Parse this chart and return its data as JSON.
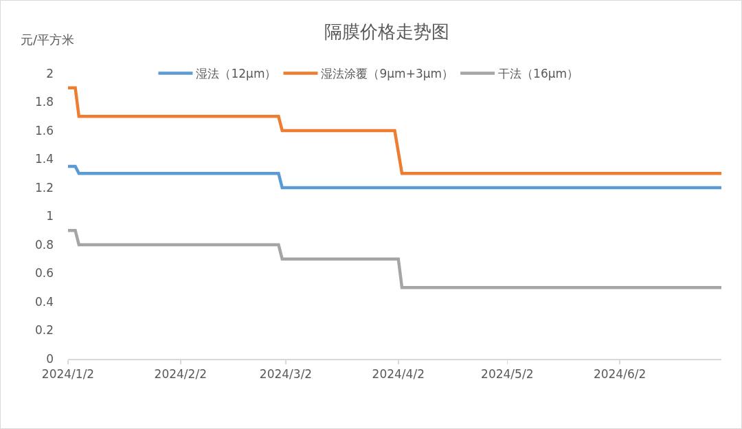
{
  "chart_data": {
    "type": "line",
    "title": "隔膜价格走势图",
    "ylabel": "元/平方米",
    "series": [
      {
        "name": "湿法（12μm）",
        "color": "#5b9bd5",
        "x": [
          "2024-01-02",
          "2024-01-04",
          "2024-01-05",
          "2024-02-29",
          "2024-03-01",
          "2024-06-30"
        ],
        "values": [
          1.35,
          1.35,
          1.3,
          1.3,
          1.2,
          1.2
        ]
      },
      {
        "name": "湿法涂覆（9μm+3μm）",
        "color": "#ed7d31",
        "x": [
          "2024-01-02",
          "2024-01-04",
          "2024-01-05",
          "2024-02-29",
          "2024-03-01",
          "2024-04-01",
          "2024-04-03",
          "2024-06-30"
        ],
        "values": [
          1.9,
          1.9,
          1.7,
          1.7,
          1.6,
          1.6,
          1.3,
          1.3
        ]
      },
      {
        "name": "干法（16μm）",
        "color": "#a5a5a5",
        "x": [
          "2024-01-02",
          "2024-01-04",
          "2024-01-05",
          "2024-02-29",
          "2024-03-01",
          "2024-04-02",
          "2024-04-03",
          "2024-06-30"
        ],
        "values": [
          0.9,
          0.9,
          0.8,
          0.8,
          0.7,
          0.7,
          0.5,
          0.5
        ]
      }
    ],
    "xlim": [
      "2024-01-02",
      "2024-06-30"
    ],
    "xticks": [
      {
        "value": "2024-01-02",
        "label": "2024/1/2"
      },
      {
        "value": "2024-02-02",
        "label": "2024/2/2"
      },
      {
        "value": "2024-03-02",
        "label": "2024/3/2"
      },
      {
        "value": "2024-04-02",
        "label": "2024/4/2"
      },
      {
        "value": "2024-05-02",
        "label": "2024/5/2"
      },
      {
        "value": "2024-06-02",
        "label": "2024/6/2"
      }
    ],
    "ylim": [
      0,
      2
    ],
    "yticks": [
      0,
      0.2,
      0.4,
      0.6,
      0.8,
      1,
      1.2,
      1.4,
      1.6,
      1.8,
      2
    ],
    "legend": "top",
    "line_style": "solid"
  }
}
